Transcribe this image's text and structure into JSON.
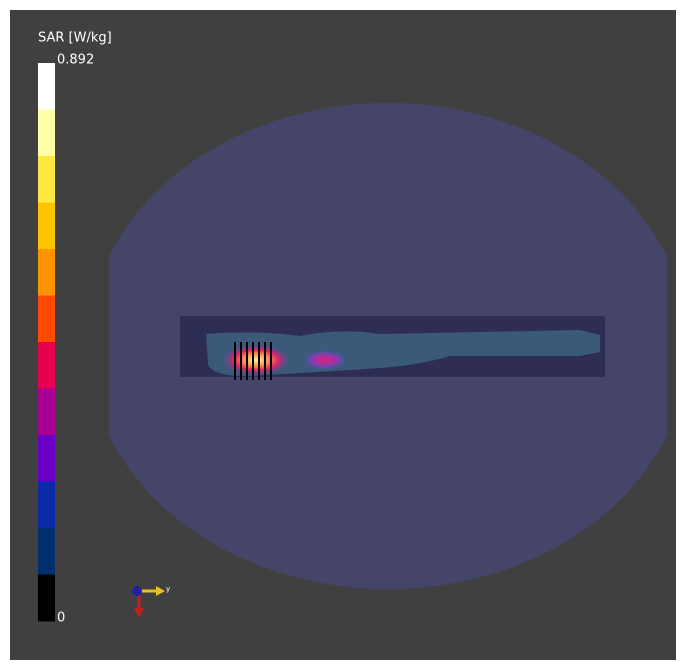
{
  "colorbar": {
    "title": "SAR [W/kg]",
    "max": 0.892,
    "min": 0,
    "colors": [
      "#ffffff",
      "#ffffa8",
      "#ffe840",
      "#ffc400",
      "#ff9400",
      "#ff4a00",
      "#e6004e",
      "#a80096",
      "#6a00c8",
      "#0a2aaa",
      "#00306e",
      "#000000"
    ]
  },
  "triad": {
    "axis_label": "y"
  }
}
